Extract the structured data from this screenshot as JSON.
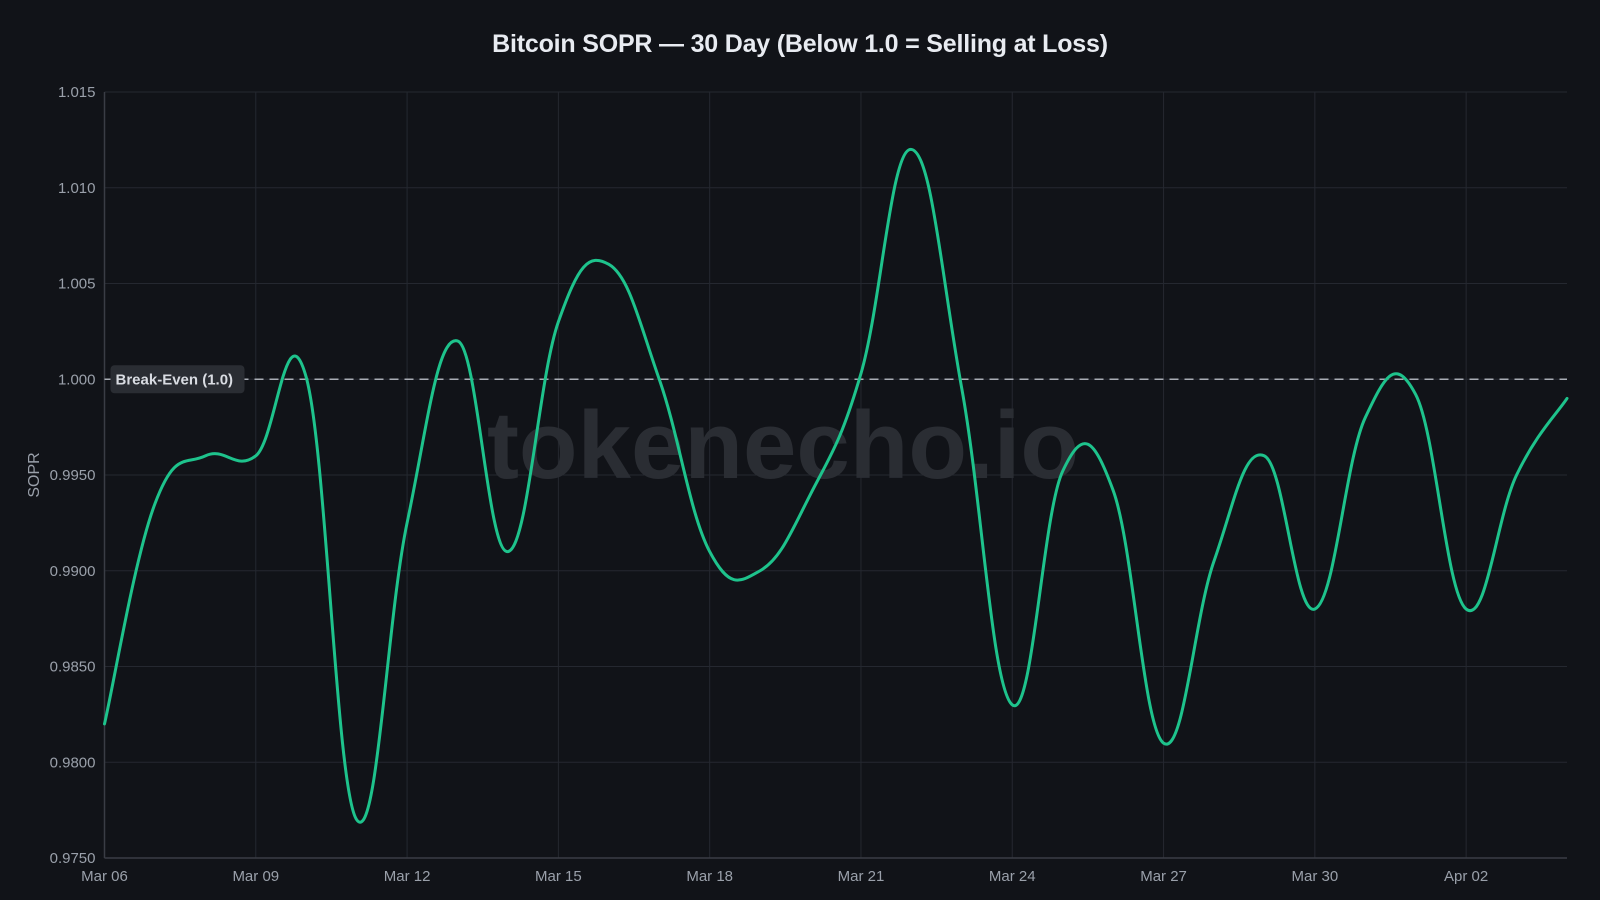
{
  "title": "Bitcoin SOPR — 30 Day (Below 1.0 = Selling at Loss)",
  "watermark": "tokenecho.io",
  "colors": {
    "background": "#111318",
    "line": "#1ec38c",
    "grid": "#252830",
    "reference_line": "#a9adb5",
    "text": "#9aa0aa",
    "title": "#e8ebf1"
  },
  "chart_data": {
    "type": "line",
    "title": "Bitcoin SOPR — 30 Day (Below 1.0 = Selling at Loss)",
    "xlabel": "",
    "ylabel": "SOPR",
    "ylim": [
      0.975,
      1.015
    ],
    "yticks": [
      "0.9750",
      "0.9800",
      "0.9850",
      "0.9900",
      "0.9950",
      "1.000",
      "1.005",
      "1.010",
      "1.015"
    ],
    "ytick_values": [
      0.975,
      0.98,
      0.985,
      0.99,
      0.995,
      1.0,
      1.005,
      1.01,
      1.015
    ],
    "xticks": [
      "Mar 06",
      "Mar 09",
      "Mar 12",
      "Mar 15",
      "Mar 18",
      "Mar 21",
      "Mar 24",
      "Mar 27",
      "Mar 30",
      "Apr 02"
    ],
    "xtick_indices": [
      0,
      3,
      6,
      9,
      12,
      15,
      18,
      21,
      24,
      27
    ],
    "grid": true,
    "legend": null,
    "x": [
      "Mar 06",
      "Mar 07",
      "Mar 08",
      "Mar 09",
      "Mar 10",
      "Mar 11",
      "Mar 12",
      "Mar 13",
      "Mar 14",
      "Mar 15",
      "Mar 16",
      "Mar 17",
      "Mar 18",
      "Mar 19",
      "Mar 20",
      "Mar 21",
      "Mar 22",
      "Mar 23",
      "Mar 24",
      "Mar 25",
      "Mar 26",
      "Mar 27",
      "Mar 28",
      "Mar 29",
      "Mar 30",
      "Mar 31",
      "Apr 01",
      "Apr 02",
      "Apr 03",
      "Apr 04"
    ],
    "series": [
      {
        "name": "SOPR",
        "values": [
          0.982,
          0.9935,
          0.996,
          0.996,
          1.0001,
          0.977,
          0.9925,
          1.002,
          0.991,
          1.003,
          1.006,
          1.0,
          0.991,
          0.99,
          0.994,
          1.0003,
          1.012,
          0.9995,
          0.983,
          0.9952,
          0.9942,
          0.981,
          0.9905,
          0.996,
          0.988,
          0.998,
          0.9992,
          0.988,
          0.995,
          0.999
        ]
      }
    ],
    "annotations": [
      {
        "type": "hline",
        "y": 1.0,
        "label": "Break-Even (1.0)",
        "style": "dashed"
      }
    ]
  }
}
